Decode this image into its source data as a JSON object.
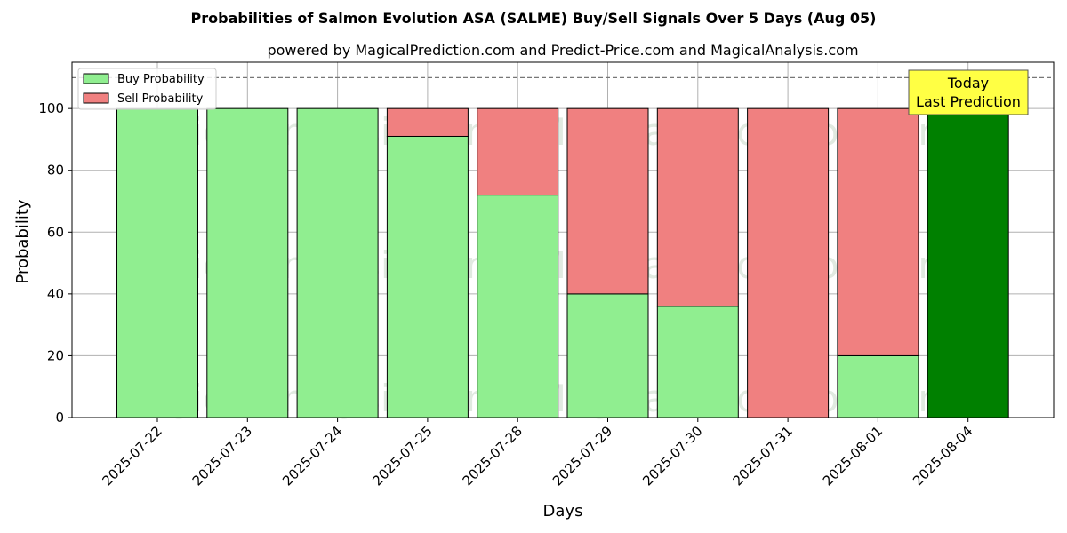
{
  "chart_data": {
    "type": "bar",
    "stacked": true,
    "title": "Probabilities of Salmon Evolution ASA (SALME) Buy/Sell Signals Over 5 Days (Aug 05)",
    "subtitle": "powered by MagicalPrediction.com and Predict-Price.com and MagicalAnalysis.com",
    "xlabel": "Days",
    "ylabel": "Probability",
    "ylim": [
      0,
      115
    ],
    "yticks": [
      0,
      20,
      40,
      60,
      80,
      100
    ],
    "reference_line": 110,
    "grid": true,
    "legend_position": "top-left",
    "categories": [
      "2025-07-22",
      "2025-07-23",
      "2025-07-24",
      "2025-07-25",
      "2025-07-28",
      "2025-07-29",
      "2025-07-30",
      "2025-07-31",
      "2025-08-01",
      "2025-08-04"
    ],
    "series": [
      {
        "name": "Buy Probability",
        "color": "#90ee90",
        "values": [
          100,
          100,
          100,
          91,
          72,
          40,
          36,
          0,
          20,
          100
        ]
      },
      {
        "name": "Sell Probability",
        "color": "#f08080",
        "values": [
          0,
          0,
          0,
          9,
          28,
          60,
          64,
          100,
          80,
          0
        ]
      }
    ],
    "highlight": {
      "index": 9,
      "color": "#008000"
    },
    "annotation": {
      "line1": "Today",
      "line2": "Last Prediction",
      "color": "#ffff44"
    },
    "watermarks": [
      "MagicalAnalysis.com",
      "MagicalPrediction.com",
      "MagicalAnalysis.com",
      "MagicalPrediction.com",
      "MagicalAnalysis.com",
      "MagicalPrediction.com"
    ]
  }
}
